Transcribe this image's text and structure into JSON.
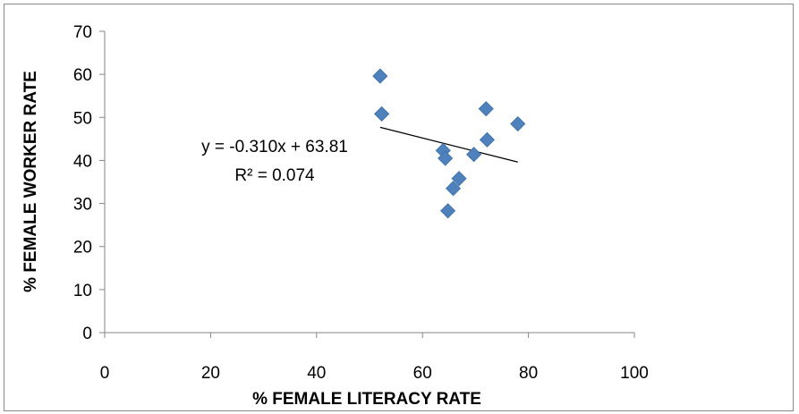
{
  "chart_data": {
    "type": "scatter",
    "title": "",
    "xlabel": "% FEMALE LITERACY RATE",
    "ylabel": "% FEMALE WORKER RATE",
    "xlim": [
      0,
      100
    ],
    "ylim": [
      0,
      70
    ],
    "x_ticks": [
      0,
      20,
      40,
      60,
      80,
      100
    ],
    "y_ticks": [
      0,
      10,
      20,
      30,
      40,
      50,
      60,
      70
    ],
    "grid": false,
    "marker": "diamond",
    "marker_color": "#4f81bd",
    "series": [
      {
        "x": [
          52.0,
          52.3,
          63.9,
          64.3,
          64.8,
          65.8,
          66.9,
          69.7,
          72.0,
          72.2,
          78.0
        ],
        "y": [
          59.6,
          50.8,
          42.3,
          40.5,
          28.3,
          33.5,
          35.8,
          41.4,
          52.0,
          44.8,
          48.5
        ]
      }
    ],
    "trendline": {
      "type": "linear",
      "x_range": [
        52.0,
        78.0
      ],
      "slope": -0.31,
      "intercept": 63.81,
      "color": "#000000",
      "equation_label": "y = -0.310x + 63.81",
      "r2_label": "R² = 0.074"
    }
  }
}
